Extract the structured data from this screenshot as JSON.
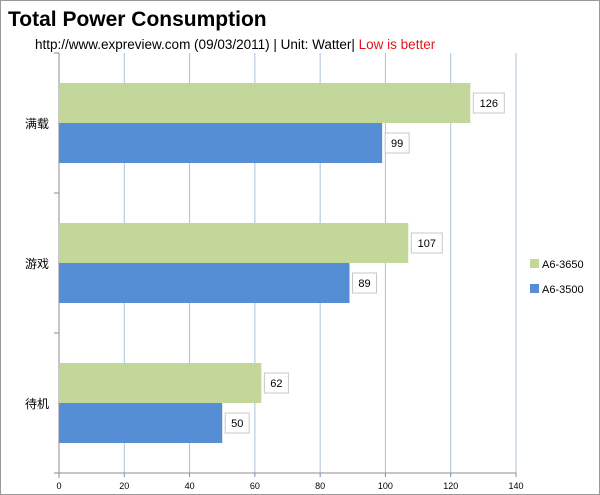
{
  "chart_data": {
    "type": "bar",
    "orientation": "horizontal",
    "title": "Total Power Consumption",
    "subtitle": {
      "source": "http://www.expreview.com  (09/03/2011) | Unit:  Watter|",
      "note": " Low is better"
    },
    "categories": [
      "满载",
      "游戏",
      "待机"
    ],
    "series": [
      {
        "name": "A6-3650",
        "color": "#c4d79b",
        "values": [
          126,
          107,
          62
        ]
      },
      {
        "name": "A6-3500",
        "color": "#558ed5",
        "values": [
          99,
          89,
          50
        ]
      }
    ],
    "xlim": [
      0,
      140
    ],
    "xticks": [
      "0",
      "20",
      "40",
      "60",
      "80",
      "100",
      "120",
      "140"
    ],
    "grid": true,
    "legend_position": "right",
    "data_labels": true
  }
}
